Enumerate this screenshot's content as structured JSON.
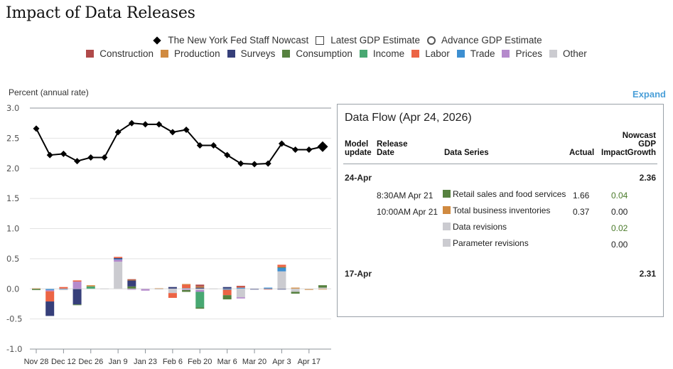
{
  "title": "Impact of Data Releases",
  "legend": {
    "markers": [
      {
        "label": "The New York Fed Staff Nowcast",
        "icon": "diamond"
      },
      {
        "label": "Latest GDP Estimate",
        "icon": "square-outline"
      },
      {
        "label": "Advance GDP Estimate",
        "icon": "circle-outline"
      }
    ],
    "categories": [
      {
        "key": "construction",
        "label": "Construction",
        "color": "#b04a4a"
      },
      {
        "key": "production",
        "label": "Production",
        "color": "#d08a40"
      },
      {
        "key": "surveys",
        "label": "Surveys",
        "color": "#363f7a"
      },
      {
        "key": "consumption",
        "label": "Consumption",
        "color": "#56813f"
      },
      {
        "key": "income",
        "label": "Income",
        "color": "#48a872"
      },
      {
        "key": "labor",
        "label": "Labor",
        "color": "#ec6445"
      },
      {
        "key": "trade",
        "label": "Trade",
        "color": "#3d8fd1"
      },
      {
        "key": "prices",
        "label": "Prices",
        "color": "#b58acc"
      },
      {
        "key": "other",
        "label": "Other",
        "color": "#cbcbd0"
      }
    ]
  },
  "expand_label": "Expand",
  "chart_data": {
    "type": "bar+line",
    "title": "Impact of Data Releases",
    "ylabel": "Percent (annual rate)",
    "xlabel": "",
    "ylim": [
      -1.0,
      3.0
    ],
    "yticks": [
      "3.0",
      "2.5",
      "2.0",
      "1.5",
      "1.0",
      "0.5",
      "0.0",
      "-0.5",
      "-1.0"
    ],
    "ytick_values": [
      3.0,
      2.5,
      2.0,
      1.5,
      1.0,
      0.5,
      0.0,
      -0.5,
      -1.0
    ],
    "grid": true,
    "xtick_labels": [
      "Nov 28",
      "Dec 12",
      "Dec 26",
      "Jan 9",
      "Jan 23",
      "Feb 6",
      "Feb 20",
      "Mar 6",
      "Mar 20",
      "Apr 3",
      "Apr 17"
    ],
    "xtick_indices": [
      0,
      2,
      4,
      6,
      8,
      10,
      12,
      14,
      16,
      18,
      20
    ],
    "x": [
      "Nov 28",
      "Dec 5",
      "Dec 12",
      "Dec 19",
      "Dec 26",
      "Jan 2",
      "Jan 9",
      "Jan 16",
      "Jan 23",
      "Jan 30",
      "Feb 6",
      "Feb 13",
      "Feb 20",
      "Feb 27",
      "Mar 6",
      "Mar 13",
      "Mar 20",
      "Mar 27",
      "Apr 3",
      "Apr 10",
      "Apr 17",
      "Apr 24"
    ],
    "nowcast": {
      "name": "The New York Fed Staff Nowcast",
      "values": [
        2.66,
        2.22,
        2.24,
        2.12,
        2.18,
        2.18,
        2.6,
        2.75,
        2.73,
        2.73,
        2.6,
        2.64,
        2.38,
        2.38,
        2.22,
        2.08,
        2.07,
        2.08,
        2.41,
        2.31,
        2.31,
        2.36
      ]
    },
    "impacts": [
      {
        "production": 0.01,
        "consumption": -0.02
      },
      {
        "trade": -0.02,
        "prices": -0.02,
        "labor": -0.17,
        "surveys": -0.24
      },
      {
        "labor": 0.03,
        "trade": -0.01,
        "other": -0.01
      },
      {
        "prices": 0.12,
        "labor": 0.02,
        "consumption": -0.01,
        "surveys": -0.26
      },
      {
        "income": 0.04,
        "production": 0.02
      },
      {
        "other": 0.005
      },
      {
        "other": 0.45,
        "prices": 0.04,
        "trade": 0.005,
        "labor": 0.02,
        "surveys": 0.015
      },
      {
        "consumption": 0.04,
        "surveys": 0.1,
        "production": 0.01,
        "construction": 0.01,
        "prices": -0.015
      },
      {
        "prices": -0.03
      },
      {
        "production": 0.01,
        "other": -0.01
      },
      {
        "surveys": 0.03,
        "other": -0.07,
        "labor": -0.08
      },
      {
        "trade": 0.01,
        "labor": 0.06,
        "production": 0.01,
        "other": -0.01,
        "prices": -0.01,
        "consumption": -0.03
      },
      {
        "surveys": 0.02,
        "production": 0.02,
        "construction": 0.03,
        "other": -0.02,
        "prices": -0.03,
        "income": -0.26,
        "consumption": -0.02
      },
      {
        "other": 0.005
      },
      {
        "surveys": 0.03,
        "trade": -0.015,
        "labor": -0.09,
        "consumption": -0.07
      },
      {
        "trade": 0.02,
        "labor": 0.02,
        "construction": 0.01,
        "other": -0.14,
        "prices": -0.02
      },
      {
        "surveys": -0.01
      },
      {
        "trade": 0.02,
        "construction": -0.01
      },
      {
        "other": 0.29,
        "trade": 0.06,
        "labor": 0.04,
        "consumption": 0.01,
        "surveys": -0.01
      },
      {
        "production": 0.02,
        "other": -0.05,
        "consumption": -0.03
      },
      {
        "production": -0.01,
        "other": -0.005
      },
      {
        "other": 0.02,
        "consumption": 0.04,
        "production": -0.01
      }
    ]
  },
  "panel": {
    "title": "Data Flow (Apr 24, 2026)",
    "headers": {
      "model_update": [
        "Model",
        "update"
      ],
      "release_date": [
        "Release",
        "Date"
      ],
      "data_series": "Data Series",
      "actual": "Actual",
      "impact": "Impact",
      "nowcast": [
        "Nowcast",
        "GDP",
        "Growth"
      ]
    },
    "groups": [
      {
        "update": "24-Apr",
        "nowcast": "2.36",
        "rows": [
          {
            "release": "8:30AM Apr 21",
            "series": "Retail sales and food services",
            "color": "#56813f",
            "actual": "1.66",
            "impact": "0.04",
            "impact_colored": true
          },
          {
            "release": "10:00AM Apr 21",
            "series": "Total business inventories",
            "color": "#d08a40",
            "actual": "0.37",
            "impact": "0.00",
            "impact_colored": false
          },
          {
            "release": "",
            "series": "Data revisions",
            "color": "#cbcbd0",
            "actual": "",
            "impact": "0.02",
            "impact_colored": true
          },
          {
            "release": "",
            "series": "Parameter revisions",
            "color": "#cbcbd0",
            "actual": "",
            "impact": "0.00",
            "impact_colored": false
          }
        ]
      },
      {
        "update": "17-Apr",
        "nowcast": "2.31",
        "rows": []
      }
    ]
  }
}
